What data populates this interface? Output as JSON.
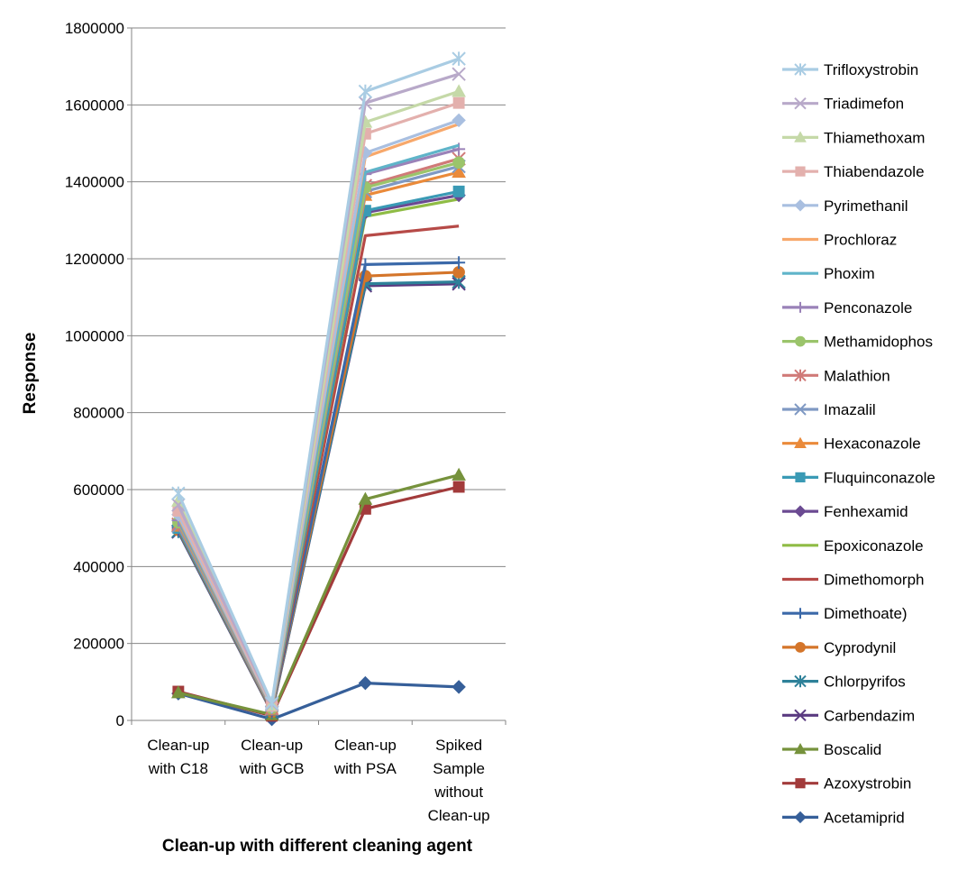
{
  "chart_data": {
    "type": "line",
    "xlabel": "Clean-up with different cleaning agent",
    "ylabel": "Response",
    "ylim": [
      0,
      1800000
    ],
    "ytick_step": 200000,
    "grid": "horizontal",
    "legend_position": "right",
    "categories": [
      [
        "Clean-up",
        "with C18"
      ],
      [
        "Clean-up",
        "with GCB"
      ],
      [
        "Clean-up",
        "with PSA"
      ],
      [
        "Spiked",
        "Sample",
        "without",
        "Clean-up"
      ]
    ],
    "series": [
      {
        "name": "Trifloxystrobin",
        "color": "#a9cce3",
        "marker": "star",
        "values": [
          590000,
          45000,
          1635000,
          1720000
        ]
      },
      {
        "name": "Triadimefon",
        "color": "#b8a9c9",
        "marker": "x",
        "values": [
          560000,
          42000,
          1605000,
          1680000
        ]
      },
      {
        "name": "Thiamethoxam",
        "color": "#c5d9a8",
        "marker": "triangle",
        "values": [
          570000,
          40000,
          1555000,
          1635000
        ]
      },
      {
        "name": "Thiabendazole",
        "color": "#e3b0ad",
        "marker": "square",
        "values": [
          545000,
          38000,
          1525000,
          1605000
        ]
      },
      {
        "name": "Pyrimethanil",
        "color": "#a9bfe0",
        "marker": "diamond",
        "values": [
          535000,
          36000,
          1475000,
          1560000
        ]
      },
      {
        "name": "Prochloraz",
        "color": "#f7a86b",
        "marker": "none",
        "values": [
          530000,
          35000,
          1465000,
          1550000
        ]
      },
      {
        "name": "Phoxim",
        "color": "#5fb4c9",
        "marker": "none",
        "values": [
          525000,
          34000,
          1425000,
          1495000
        ]
      },
      {
        "name": "Penconazole",
        "color": "#9a82b8",
        "marker": "plus",
        "values": [
          520000,
          33000,
          1420000,
          1485000
        ]
      },
      {
        "name": "Methamidophos",
        "color": "#9bc46b",
        "marker": "circle",
        "values": [
          515000,
          32000,
          1385000,
          1450000
        ]
      },
      {
        "name": "Malathion",
        "color": "#d07a78",
        "marker": "star",
        "values": [
          510000,
          31000,
          1390000,
          1460000
        ]
      },
      {
        "name": "Imazalil",
        "color": "#7f99c3",
        "marker": "x",
        "values": [
          505000,
          30000,
          1375000,
          1440000
        ]
      },
      {
        "name": "Hexaconazole",
        "color": "#ea8a3a",
        "marker": "triangle",
        "values": [
          505000,
          29000,
          1365000,
          1425000
        ]
      },
      {
        "name": "Fluquinconazole",
        "color": "#3a9ab5",
        "marker": "square",
        "values": [
          500000,
          28000,
          1325000,
          1375000
        ]
      },
      {
        "name": "Fenhexamid",
        "color": "#6b4a92",
        "marker": "diamond",
        "values": [
          500000,
          27000,
          1320000,
          1365000
        ]
      },
      {
        "name": "Epoxiconazole",
        "color": "#8fbc45",
        "marker": "none",
        "values": [
          498000,
          26000,
          1310000,
          1355000
        ]
      },
      {
        "name": "Dimethomorph",
        "color": "#b64a47",
        "marker": "none",
        "values": [
          496000,
          25000,
          1260000,
          1285000
        ]
      },
      {
        "name": "Dimethoate)",
        "color": "#3b69a9",
        "marker": "plus",
        "values": [
          495000,
          24000,
          1185000,
          1190000
        ]
      },
      {
        "name": "Cyprodynil",
        "color": "#d4752a",
        "marker": "circle",
        "values": [
          495000,
          23000,
          1155000,
          1165000
        ]
      },
      {
        "name": "Chlorpyrifos",
        "color": "#2e8199",
        "marker": "star",
        "values": [
          492000,
          22000,
          1135000,
          1140000
        ]
      },
      {
        "name": "Carbendazim",
        "color": "#5a3a80",
        "marker": "x",
        "values": [
          490000,
          21000,
          1130000,
          1135000
        ]
      },
      {
        "name": "Boscalid",
        "color": "#76923c",
        "marker": "triangle",
        "values": [
          72000,
          15000,
          575000,
          638000
        ]
      },
      {
        "name": "Azoxystrobin",
        "color": "#a23b3b",
        "marker": "square",
        "values": [
          75000,
          12000,
          550000,
          607000
        ]
      },
      {
        "name": "Acetamiprid",
        "color": "#365f99",
        "marker": "diamond",
        "values": [
          70000,
          3000,
          97000,
          87000
        ]
      }
    ]
  }
}
